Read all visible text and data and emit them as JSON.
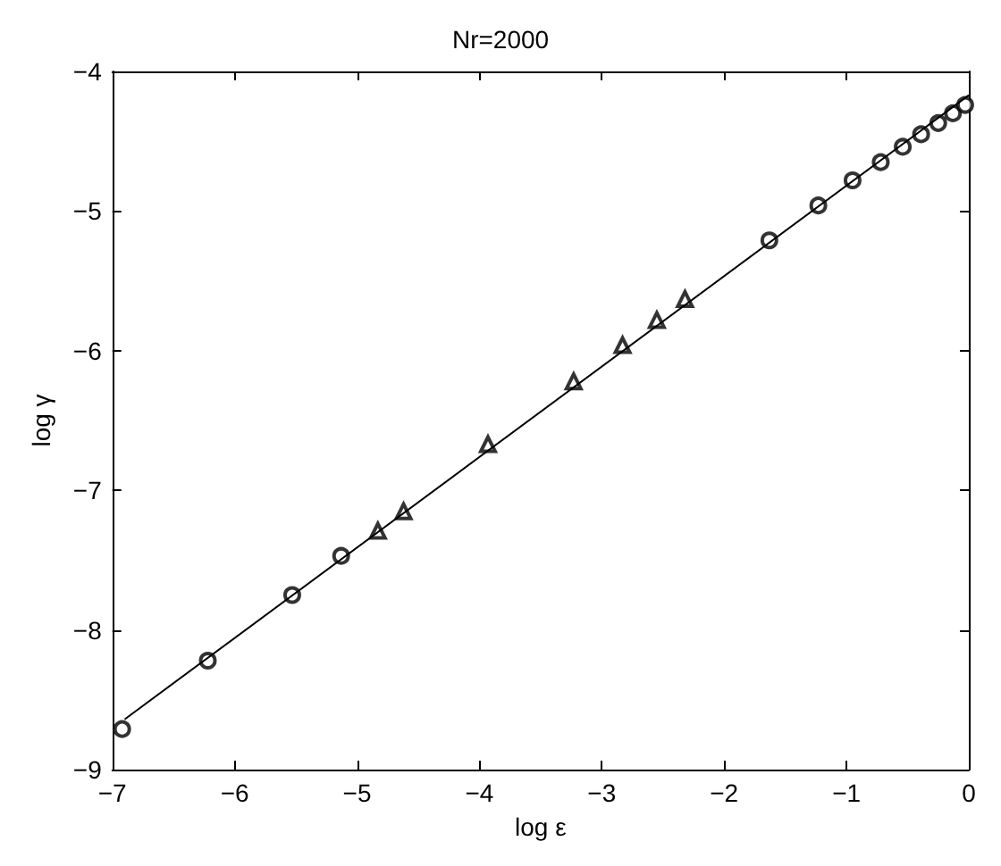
{
  "chart_data": {
    "type": "scatter",
    "title": "Nr=2000",
    "xlabel": "log ε",
    "ylabel": "log γ",
    "xlim": [
      -7,
      0
    ],
    "ylim": [
      -9,
      -4
    ],
    "xticks": [
      -7,
      -6,
      -5,
      -4,
      -3,
      -2,
      -1,
      0
    ],
    "yticks": [
      -9,
      -8,
      -7,
      -6,
      -5,
      -4
    ],
    "grid": false,
    "series": [
      {
        "marker": "circle",
        "color": "#000000",
        "x": [
          -6.92,
          -6.22,
          -5.53,
          -5.13,
          -1.63,
          -1.23,
          -0.95,
          -0.72,
          -0.54,
          -0.39,
          -0.25,
          -0.13,
          -0.03
        ],
        "values": [
          -8.71,
          -8.22,
          -7.75,
          -7.47,
          -5.21,
          -4.96,
          -4.78,
          -4.65,
          -4.54,
          -4.45,
          -4.37,
          -4.3,
          -4.24
        ]
      },
      {
        "marker": "triangle",
        "color": "#000000",
        "x": [
          -4.83,
          -4.62,
          -3.93,
          -3.23,
          -2.83,
          -2.55,
          -2.32
        ],
        "values": [
          -7.29,
          -7.15,
          -6.67,
          -6.22,
          -5.96,
          -5.78,
          -5.63
        ]
      },
      {
        "type": "line",
        "marker": "none",
        "line_style": "solid",
        "color": "#000000",
        "x": [
          -6.9,
          0
        ],
        "values": [
          -8.64,
          -4.17
        ]
      }
    ]
  }
}
